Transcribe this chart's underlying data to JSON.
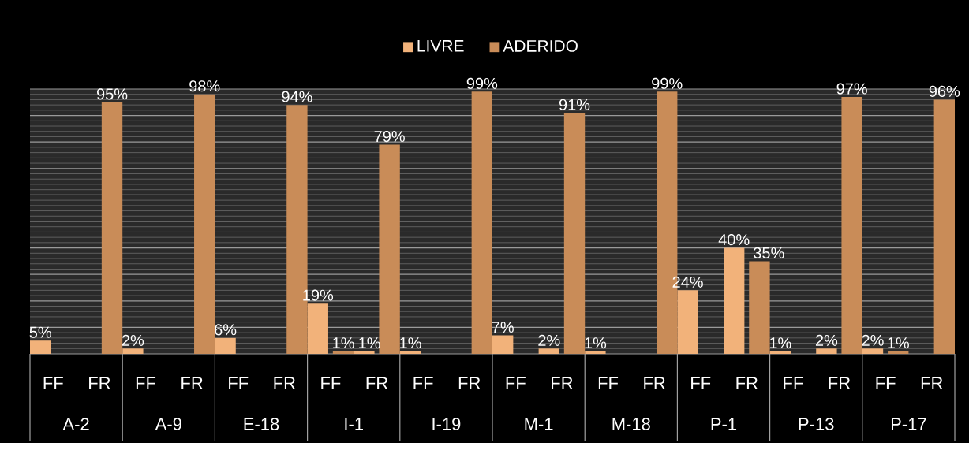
{
  "chart_data": {
    "type": "bar",
    "categories": [
      "FF",
      "FR",
      "FF",
      "FR",
      "FF",
      "FR",
      "FF",
      "FR",
      "FF",
      "FR",
      "FF",
      "FR",
      "FF",
      "FR",
      "FF",
      "FR",
      "FF",
      "FR",
      "FF",
      "FR"
    ],
    "annotations": [
      "A-2",
      "A-9",
      "E-18",
      "I-1",
      "I-19",
      "M-1",
      "M-18",
      "P-1",
      "P-13",
      "P-17"
    ],
    "series": [
      {
        "name": "LIVRE",
        "color": "#f2b27a",
        "values": [
          5,
          null,
          2,
          null,
          6,
          null,
          19,
          1,
          1,
          null,
          7,
          2,
          1,
          null,
          24,
          40,
          1,
          2,
          2,
          null
        ],
        "value_labels": [
          "5%",
          null,
          "2%",
          null,
          "6%",
          null,
          "19%",
          "1%",
          "1%",
          null,
          "7%",
          "2%",
          "1%",
          null,
          "24%",
          "40%",
          "1%",
          "2%",
          "2%",
          null
        ]
      },
      {
        "name": "ADERIDO",
        "color": "#c98c58",
        "values": [
          null,
          95,
          null,
          98,
          null,
          94,
          1,
          79,
          null,
          99,
          null,
          91,
          null,
          99,
          null,
          35,
          null,
          97,
          1,
          96
        ],
        "value_labels": [
          null,
          "95%",
          null,
          "98%",
          null,
          "94%",
          "1%",
          "79%",
          null,
          "99%",
          null,
          "91%",
          null,
          "99%",
          null,
          "35%",
          null,
          "97%",
          "1%",
          "96%"
        ]
      }
    ],
    "ylim": [
      0,
      100
    ],
    "yticks": [
      {
        "value": 0,
        "label": null
      },
      {
        "value": 10,
        "label": null
      },
      {
        "value": 20,
        "label": null
      },
      {
        "value": 30,
        "label": null
      },
      {
        "value": 40,
        "label": null
      },
      {
        "value": 50,
        "label": null
      },
      {
        "value": 60,
        "label": null
      },
      {
        "value": 70,
        "label": null
      },
      {
        "value": 80,
        "label": null
      },
      {
        "value": 90,
        "label": null
      },
      {
        "value": 100,
        "label": null
      }
    ],
    "grid": "y",
    "legend": "top",
    "tick_labels": "x"
  }
}
